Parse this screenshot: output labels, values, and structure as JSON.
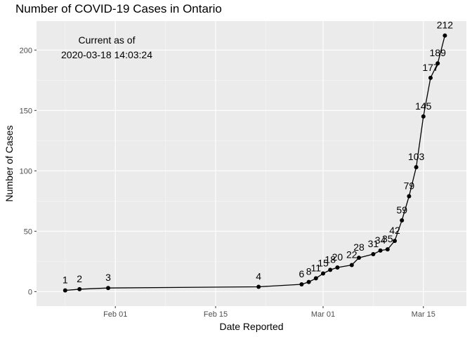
{
  "chart_data": {
    "type": "line",
    "title": "Number of COVID-19 Cases in Ontario",
    "xlabel": "Date Reported",
    "ylabel": "Number of Cases",
    "annotation": [
      "Current as of",
      "2020-03-18 14:03:24"
    ],
    "x_ticks": [
      "Feb 01",
      "Feb 15",
      "Mar 01",
      "Mar 15"
    ],
    "y_ticks": [
      0,
      50,
      100,
      150,
      200
    ],
    "ylim": [
      -12,
      224
    ],
    "xlim": [
      "2020-01-21",
      "2020-03-21"
    ],
    "grid": true,
    "points": [
      {
        "x": "2020-01-25",
        "y": 1
      },
      {
        "x": "2020-01-27",
        "y": 2
      },
      {
        "x": "2020-01-31",
        "y": 3
      },
      {
        "x": "2020-02-21",
        "y": 4
      },
      {
        "x": "2020-02-27",
        "y": 6
      },
      {
        "x": "2020-02-28",
        "y": 8
      },
      {
        "x": "2020-02-29",
        "y": 11
      },
      {
        "x": "2020-03-01",
        "y": 15
      },
      {
        "x": "2020-03-02",
        "y": 18
      },
      {
        "x": "2020-03-03",
        "y": 20
      },
      {
        "x": "2020-03-05",
        "y": 22
      },
      {
        "x": "2020-03-06",
        "y": 28
      },
      {
        "x": "2020-03-08",
        "y": 31
      },
      {
        "x": "2020-03-09",
        "y": 34
      },
      {
        "x": "2020-03-10",
        "y": 35
      },
      {
        "x": "2020-03-11",
        "y": 42
      },
      {
        "x": "2020-03-12",
        "y": 59
      },
      {
        "x": "2020-03-13",
        "y": 79
      },
      {
        "x": "2020-03-14",
        "y": 103
      },
      {
        "x": "2020-03-15",
        "y": 145
      },
      {
        "x": "2020-03-16",
        "y": 177
      },
      {
        "x": "2020-03-17",
        "y": 189
      },
      {
        "x": "2020-03-18",
        "y": 212
      }
    ]
  }
}
